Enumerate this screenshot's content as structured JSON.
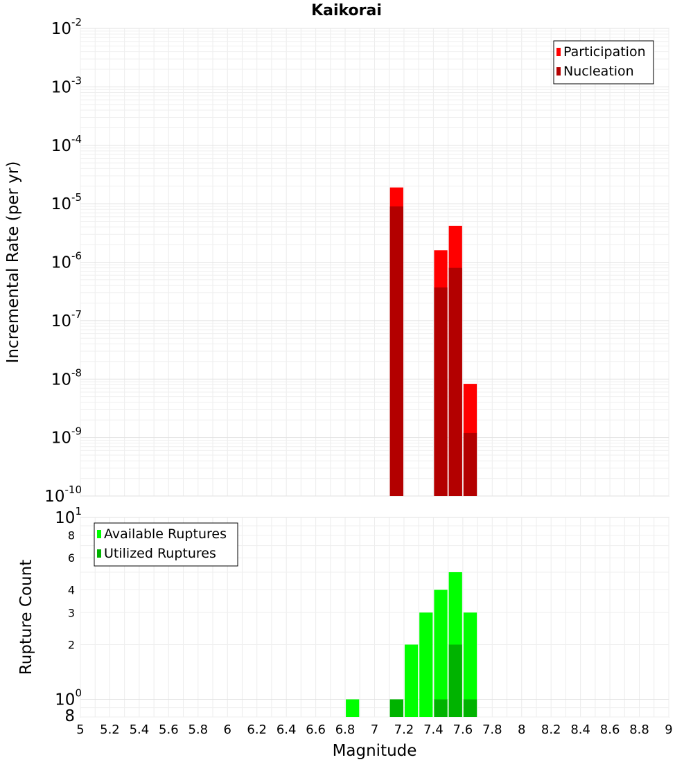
{
  "chart_data": [
    {
      "type": "bar",
      "title": "Kaikorai",
      "ylabel": "Incremental Rate (per yr)",
      "xlabel": "",
      "xlim": [
        5,
        9
      ],
      "ylim": [
        1e-10,
        0.01
      ],
      "yscale": "log",
      "bar_width": 0.1,
      "x_ticks": [
        5,
        5.2,
        5.4,
        5.6,
        5.8,
        6,
        6.2,
        6.4,
        6.6,
        6.8,
        7,
        7.2,
        7.4,
        7.6,
        7.8,
        8,
        8.2,
        8.4,
        8.6,
        8.8,
        9
      ],
      "y_ticks": [
        {
          "base": "10",
          "exp": "-10",
          "value": 1e-10
        },
        {
          "base": "10",
          "exp": "-9",
          "value": 1e-09
        },
        {
          "base": "10",
          "exp": "-8",
          "value": 1e-08
        },
        {
          "base": "10",
          "exp": "-7",
          "value": 1e-07
        },
        {
          "base": "10",
          "exp": "-6",
          "value": 1e-06
        },
        {
          "base": "10",
          "exp": "-5",
          "value": 1e-05
        },
        {
          "base": "10",
          "exp": "-4",
          "value": 0.0001
        },
        {
          "base": "10",
          "exp": "-3",
          "value": 0.001
        },
        {
          "base": "10",
          "exp": "-2",
          "value": 0.01
        }
      ],
      "legend_position": "top-right",
      "grid": true,
      "series": [
        {
          "name": "Participation",
          "color": "#ff0000",
          "x": [
            7.15,
            7.45,
            7.55,
            7.65
          ],
          "values": [
            1.9e-05,
            1.6e-06,
            4.2e-06,
            8.3e-09
          ]
        },
        {
          "name": "Nucleation",
          "color": "#b30000",
          "x": [
            7.15,
            7.45,
            7.55,
            7.65
          ],
          "values": [
            9e-06,
            3.7e-07,
            8e-07,
            1.2e-09
          ]
        }
      ]
    },
    {
      "type": "bar",
      "title": "",
      "ylabel": "Rupture Count",
      "xlabel": "Magnitude",
      "xlim": [
        5,
        9
      ],
      "ylim": [
        0.8,
        10
      ],
      "yscale": "log",
      "bar_width": 0.1,
      "x_ticks": [
        5,
        5.2,
        5.4,
        5.6,
        5.8,
        6,
        6.2,
        6.4,
        6.6,
        6.8,
        7,
        7.2,
        7.4,
        7.6,
        7.8,
        8,
        8.2,
        8.4,
        8.6,
        8.8,
        9
      ],
      "y_major_ticks": [
        {
          "base": "10",
          "exp": "0",
          "value": 1
        },
        {
          "base": "10",
          "exp": "1",
          "value": 10
        }
      ],
      "y_minor_ticks": [
        {
          "label": "8",
          "value": 0.8
        },
        {
          "label": "2",
          "value": 2
        },
        {
          "label": "3",
          "value": 3
        },
        {
          "label": "4",
          "value": 4
        },
        {
          "label": "6",
          "value": 6
        },
        {
          "label": "8",
          "value": 8
        }
      ],
      "legend_position": "top-left",
      "grid": true,
      "series": [
        {
          "name": "Available Ruptures",
          "color": "#00ff00",
          "x": [
            6.85,
            7.15,
            7.25,
            7.35,
            7.45,
            7.55,
            7.65
          ],
          "values": [
            1,
            1,
            2,
            3,
            4,
            5,
            3
          ]
        },
        {
          "name": "Utilized Ruptures",
          "color": "#00b300",
          "x": [
            7.15,
            7.45,
            7.55,
            7.65
          ],
          "values": [
            1,
            1,
            2,
            1
          ]
        }
      ]
    }
  ]
}
